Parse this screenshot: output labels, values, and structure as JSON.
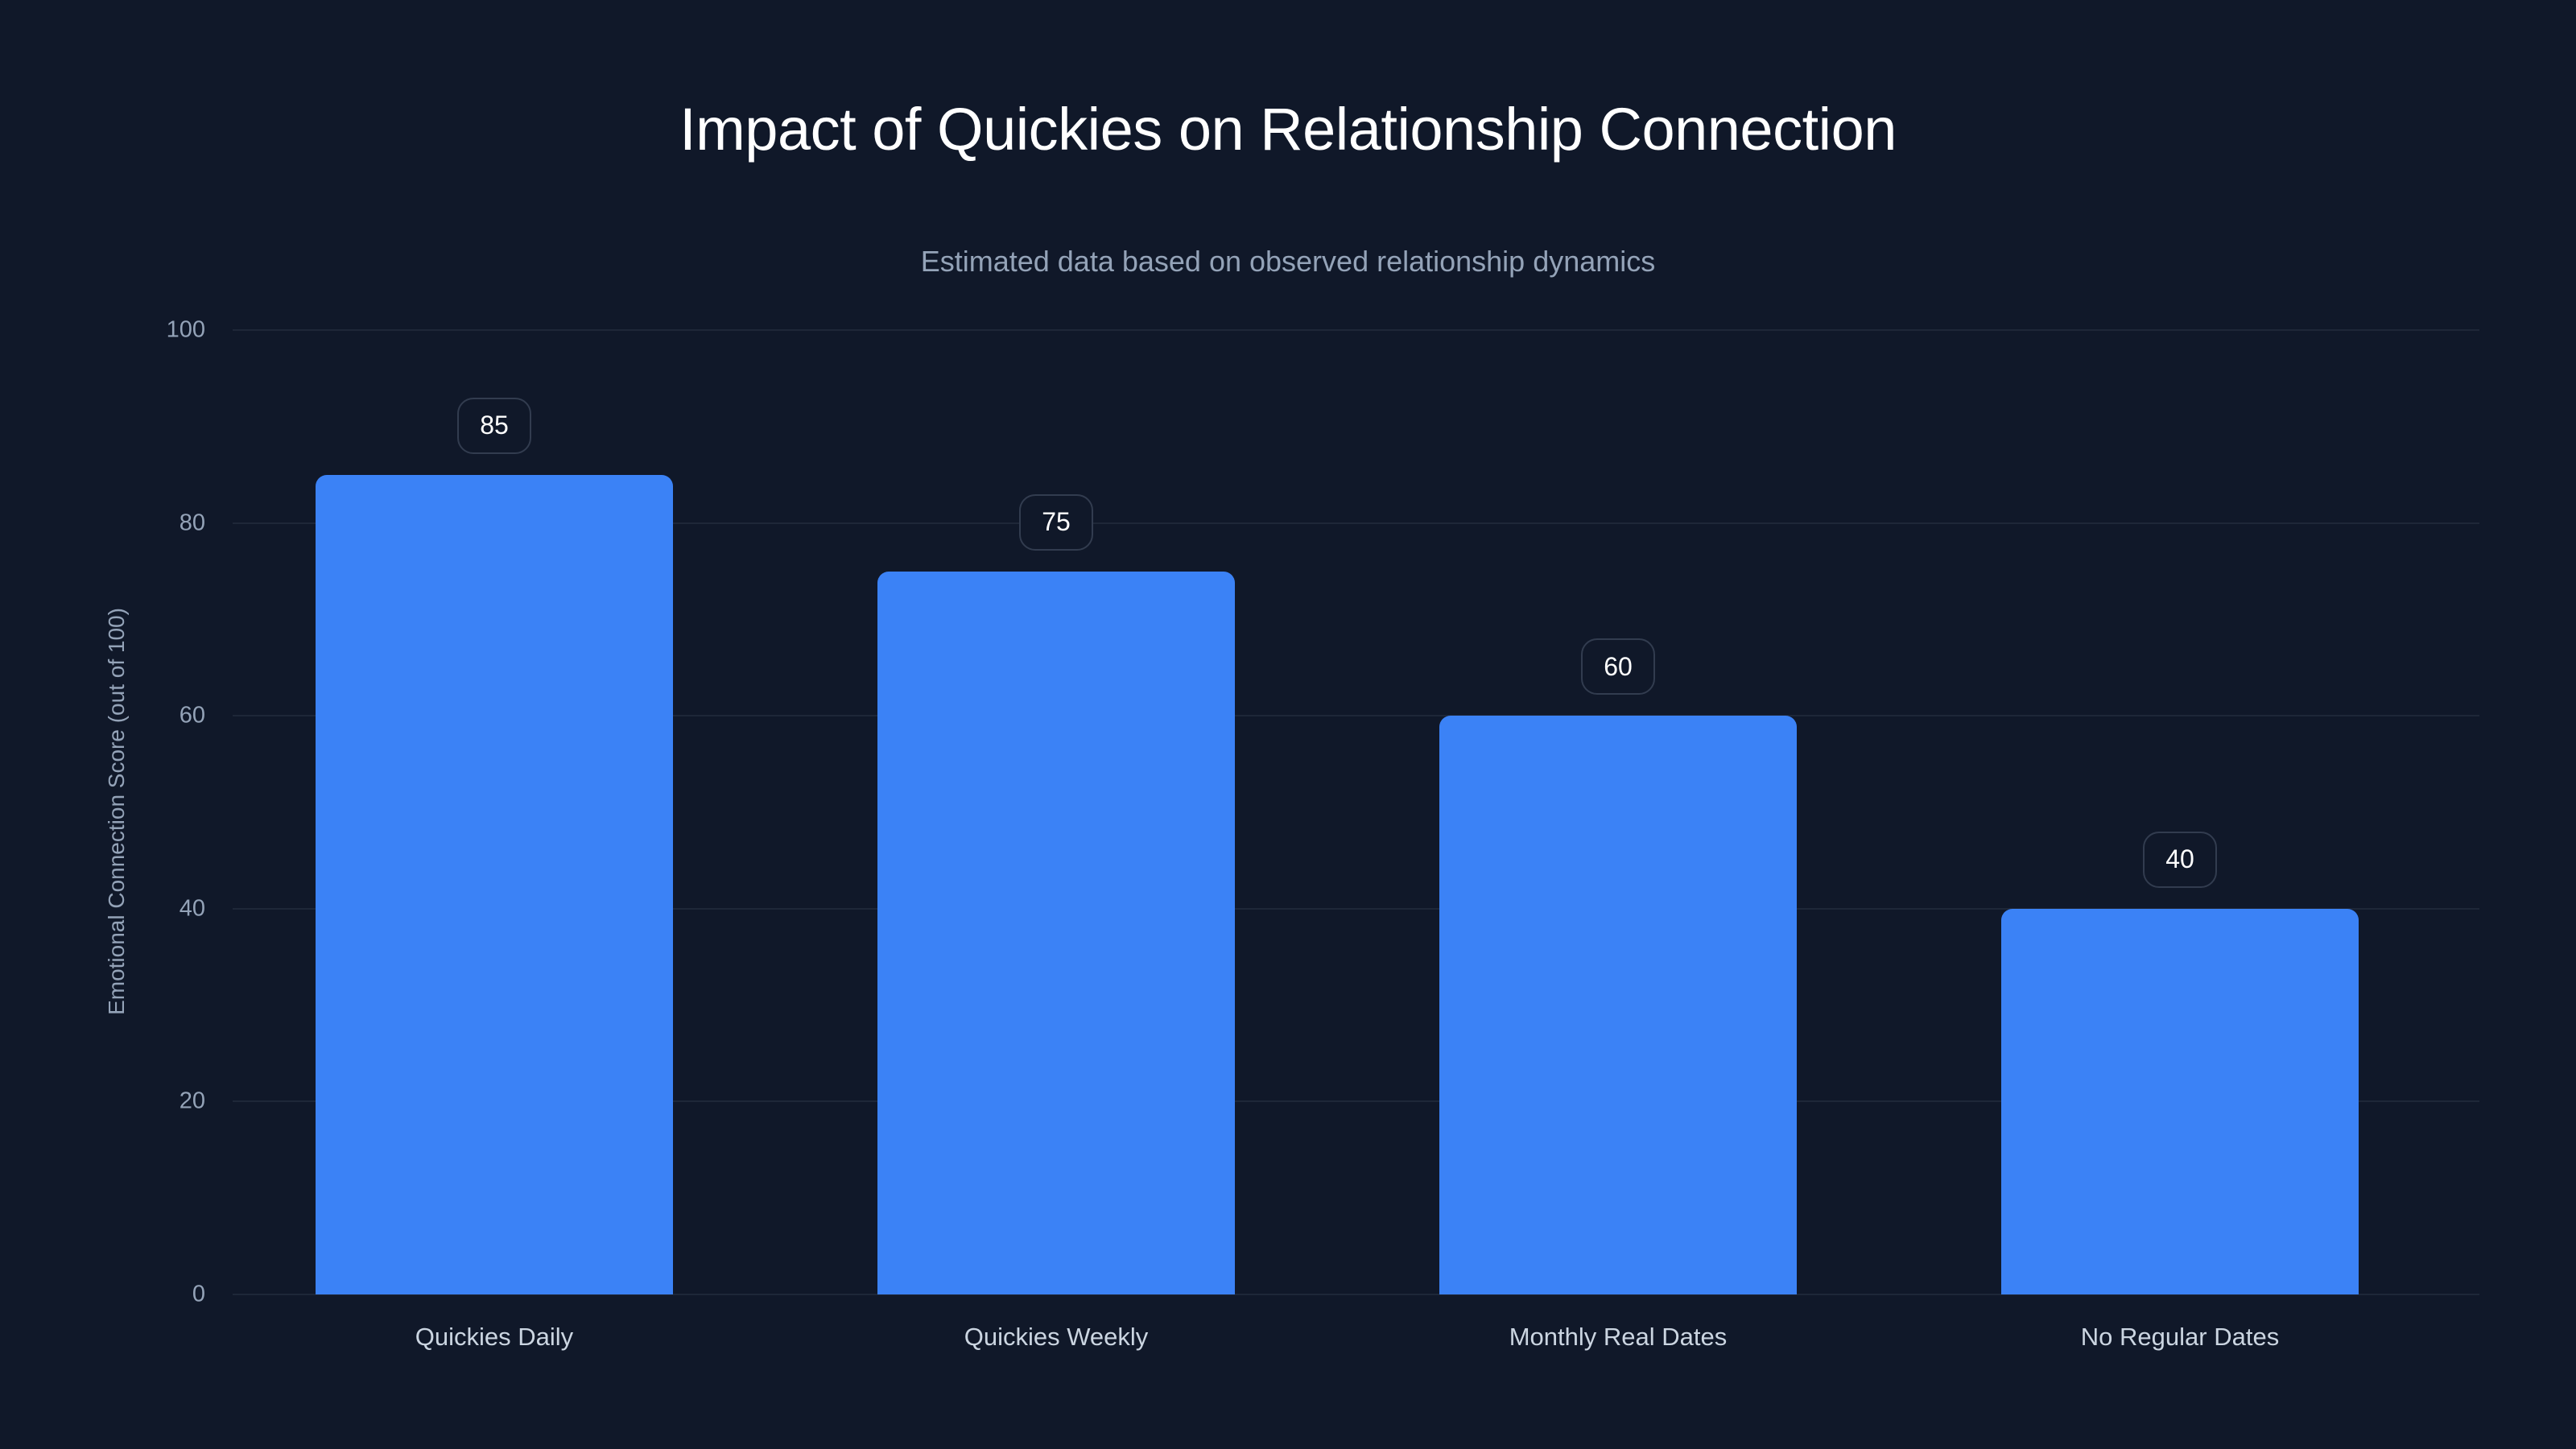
{
  "header": {
    "title": "Impact of Quickies on Relationship Connection",
    "subtitle": "Estimated data based on observed relationship dynamics"
  },
  "axes": {
    "y_title": "Emotional Connection Score (out of 100)",
    "y_ticks": [
      "0",
      "20",
      "40",
      "60",
      "80",
      "100"
    ]
  },
  "bars": [
    {
      "label": "Quickies Daily",
      "value": 85,
      "value_label": "85"
    },
    {
      "label": "Quickies Weekly",
      "value": 75,
      "value_label": "75"
    },
    {
      "label": "Monthly Real Dates",
      "value": 60,
      "value_label": "60"
    },
    {
      "label": "No Regular Dates",
      "value": 40,
      "value_label": "40"
    }
  ],
  "colors": {
    "background": "#101829",
    "bar": "#3b82f6",
    "gridline": "#1e2738",
    "title": "#ffffff",
    "muted_text": "#94a3b8",
    "category_text": "#cbd5e1"
  },
  "chart_data": {
    "type": "bar",
    "title": "Impact of Quickies on Relationship Connection",
    "subtitle": "Estimated data based on observed relationship dynamics",
    "categories": [
      "Quickies Daily",
      "Quickies Weekly",
      "Monthly Real Dates",
      "No Regular Dates"
    ],
    "values": [
      85,
      75,
      60,
      40
    ],
    "xlabel": "",
    "ylabel": "Emotional Connection Score (out of 100)",
    "ylim": [
      0,
      100
    ],
    "yticks": [
      0,
      20,
      40,
      60,
      80,
      100
    ],
    "grid": true,
    "legend": null,
    "data_labels": true
  }
}
